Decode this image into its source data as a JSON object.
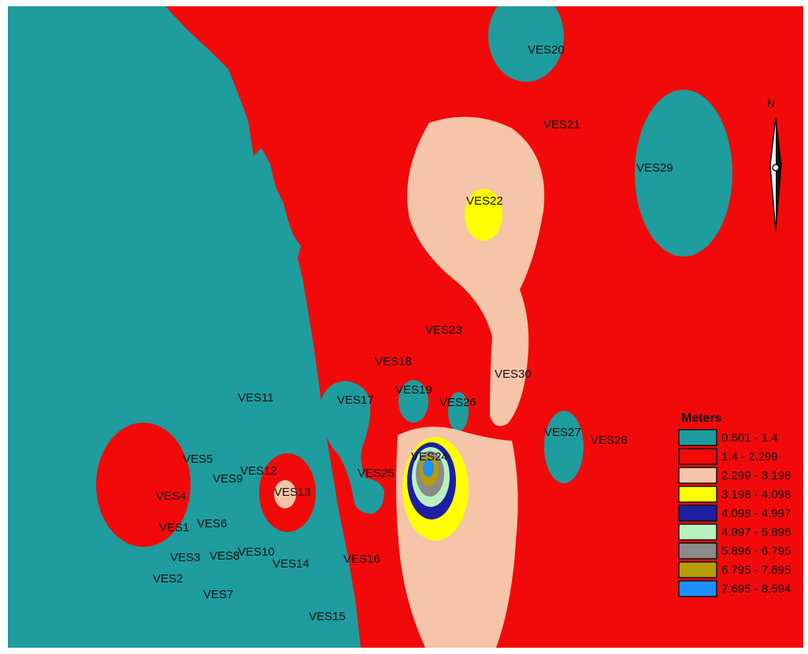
{
  "map": {
    "stations": [
      {
        "id": "VES20"
      },
      {
        "id": "VES21"
      },
      {
        "id": "VES29"
      },
      {
        "id": "VES22"
      },
      {
        "id": "VES23"
      },
      {
        "id": "VES18"
      },
      {
        "id": "VES30"
      },
      {
        "id": "VES11"
      },
      {
        "id": "VES17"
      },
      {
        "id": "VES19"
      },
      {
        "id": "VES26"
      },
      {
        "id": "VES27"
      },
      {
        "id": "VES28"
      },
      {
        "id": "VES24"
      },
      {
        "id": "VES5"
      },
      {
        "id": "VES9"
      },
      {
        "id": "VES12"
      },
      {
        "id": "VES25"
      },
      {
        "id": "VES4"
      },
      {
        "id": "VES13"
      },
      {
        "id": "VES1"
      },
      {
        "id": "VES6"
      },
      {
        "id": "VES3"
      },
      {
        "id": "VES8"
      },
      {
        "id": "VES10"
      },
      {
        "id": "VES14"
      },
      {
        "id": "VES16"
      },
      {
        "id": "VES2"
      },
      {
        "id": "VES7"
      },
      {
        "id": "VES15"
      }
    ]
  },
  "north_arrow": {
    "label": "N"
  },
  "legend": {
    "title": "Meters",
    "classes": [
      {
        "range": "0.501 - 1.4",
        "color": "#1e9c9e"
      },
      {
        "range": "1.4 - 2.299",
        "color": "#f20a0a"
      },
      {
        "range": "2.299 - 3.198",
        "color": "#f6c4a8"
      },
      {
        "range": "3.198 - 4.098",
        "color": "#ffff00"
      },
      {
        "range": "4.098 - 4.997",
        "color": "#1c1fa0"
      },
      {
        "range": "4.997 - 5.896",
        "color": "#b8f0c0"
      },
      {
        "range": "5.896 - 6.795",
        "color": "#8a8a8a"
      },
      {
        "range": "6.795 - 7.695",
        "color": "#b59c0a"
      },
      {
        "range": "7.695 - 8.594",
        "color": "#1e90ff"
      }
    ]
  }
}
